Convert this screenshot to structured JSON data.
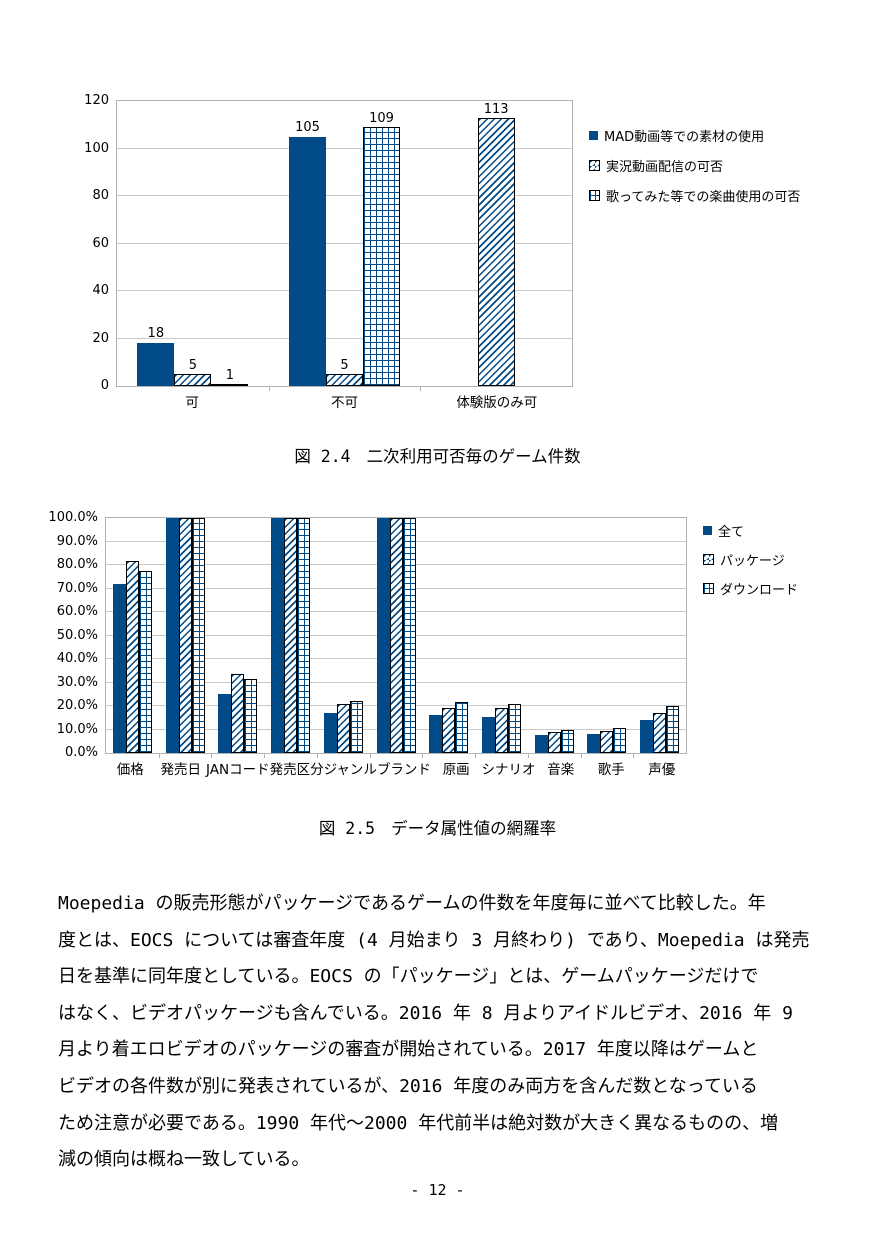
{
  "page": {
    "background": "#ffffff",
    "footer_page_number": "- 12 -"
  },
  "colors": {
    "bar_fill": "#004a87",
    "bar_border": "#000000",
    "plot_border": "#b3b3b3",
    "gridline": "#c8c8c8",
    "text": "#000000"
  },
  "figures": [
    {
      "label": "図 2.4",
      "title": "二次利用可否毎のゲーム件数"
    },
    {
      "label": "図 2.5",
      "title": "データ属性値の網羅率"
    }
  ],
  "chart_data": [
    {
      "type": "bar",
      "title": "二次利用可否毎のゲーム件数",
      "xlabel": "",
      "ylabel": "",
      "ylim": [
        0,
        120
      ],
      "ytick_step": 20,
      "grid": true,
      "legend_position": "right",
      "data_labels": true,
      "categories": [
        "可",
        "不可",
        "体験版のみ可"
      ],
      "series": [
        {
          "name": "MAD動画等での素材の使用",
          "pattern": "solid",
          "values": [
            18,
            105,
            null
          ]
        },
        {
          "name": "実況動画配信の可否",
          "pattern": "diagonal",
          "values": [
            5,
            5,
            113
          ]
        },
        {
          "name": "歌ってみた等での楽曲使用の可否",
          "pattern": "grid",
          "values": [
            1,
            109,
            null
          ]
        }
      ]
    },
    {
      "type": "bar",
      "title": "データ属性値の網羅率",
      "xlabel": "",
      "ylabel": "",
      "ylim": [
        0,
        100
      ],
      "ytick_step": 10,
      "ytick_format": "percent1",
      "grid": true,
      "legend_position": "right",
      "data_labels": false,
      "categories": [
        "価格",
        "発売日",
        "JANコード",
        "発売区分",
        "ジャンル",
        "ブランド",
        "原画",
        "シナリオ",
        "音楽",
        "歌手",
        "声優"
      ],
      "series": [
        {
          "name": "全て",
          "pattern": "solid",
          "values": [
            72,
            100,
            25,
            100,
            17,
            100,
            16,
            15.5,
            7.5,
            8,
            14
          ]
        },
        {
          "name": "パッケージ",
          "pattern": "diagonal",
          "values": [
            81.5,
            100,
            33.5,
            100,
            21,
            100,
            19,
            19,
            9,
            9.5,
            17
          ]
        },
        {
          "name": "ダウンロード",
          "pattern": "grid",
          "values": [
            77.5,
            100,
            31.5,
            100,
            22,
            100,
            21.5,
            21,
            10,
            10.5,
            20
          ]
        }
      ]
    }
  ],
  "body": {
    "lines": [
      "Moepedia の販売形態がパッケージであるゲームの件数を年度毎に並べて比較した。年",
      "度とは、EOCS については審査年度 (4 月始まり 3 月終わり) であり、Moepedia は発売",
      "日を基準に同年度としている。EOCS の「パッケージ」とは、ゲームパッケージだけで",
      "はなく、ビデオパッケージも含んでいる。2016 年 8 月よりアイドルビデオ、2016 年 9",
      "月より着エロビデオのパッケージの審査が開始されている。2017 年度以降はゲームと",
      "ビデオの各件数が別に発表されているが、2016 年度のみ両方を含んだ数となっている",
      "ため注意が必要である。1990 年代～2000 年代前半は絶対数が大きく異なるものの、増",
      "減の傾向は概ね一致している。"
    ]
  }
}
